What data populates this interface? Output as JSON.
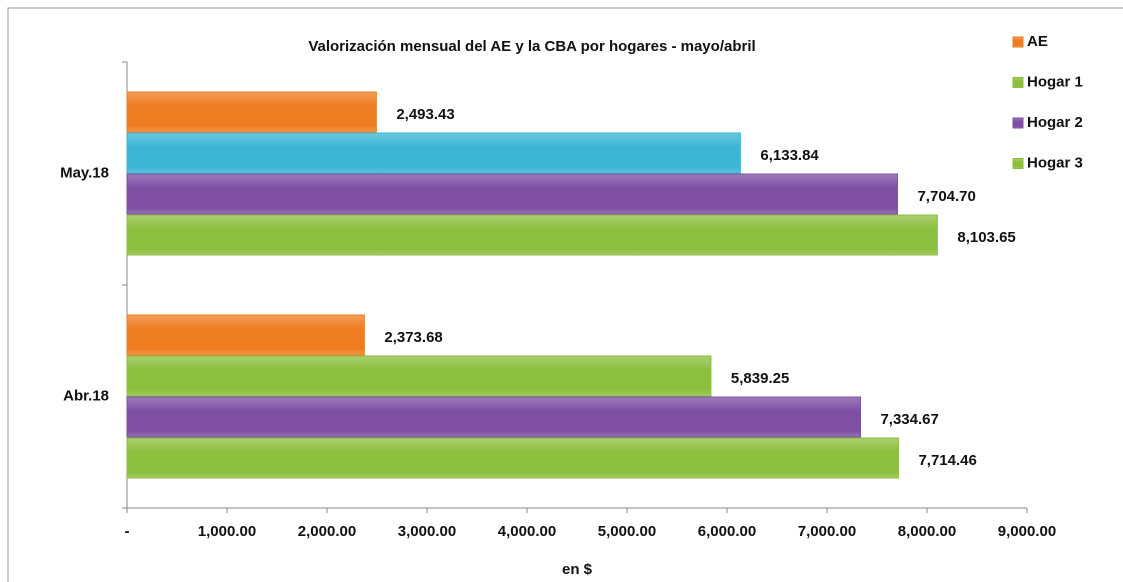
{
  "chart_data": {
    "type": "hbar",
    "title": "Valorización mensual del AE y la CBA por hogares - mayo/abril",
    "x_label": "en $",
    "categories": [
      "May.18",
      "Abr.18"
    ],
    "series": [
      {
        "name": "AE",
        "color": "#ee7d22",
        "values": [
          2493.43,
          2373.68
        ],
        "value_labels": [
          "2,493.43",
          "2,373.68"
        ]
      },
      {
        "name": "Hogar 1",
        "color": "#8dbf3f",
        "colors": [
          "#3bb5d3",
          "#8dbf3f"
        ],
        "values": [
          6133.84,
          5839.25
        ],
        "value_labels": [
          "6,133.84",
          "5,839.25"
        ]
      },
      {
        "name": "Hogar 2",
        "color": "#7e4fa3",
        "values": [
          7704.7,
          7334.67
        ],
        "value_labels": [
          "7,704.70",
          "7,334.67"
        ]
      },
      {
        "name": "Hogar 3",
        "color": "#8dbf3f",
        "values": [
          8103.65,
          7714.46
        ],
        "value_labels": [
          "8,103.65",
          "7,714.46"
        ]
      }
    ],
    "xlim": [
      0,
      9000
    ],
    "xticks": [
      {
        "value": 0,
        "label": "-"
      },
      {
        "value": 1000,
        "label": "1,000.00"
      },
      {
        "value": 2000,
        "label": "2,000.00"
      },
      {
        "value": 3000,
        "label": "3,000.00"
      },
      {
        "value": 4000,
        "label": "4,000.00"
      },
      {
        "value": 5000,
        "label": "5,000.00"
      },
      {
        "value": 6000,
        "label": "6,000.00"
      },
      {
        "value": 7000,
        "label": "7,000.00"
      },
      {
        "value": 8000,
        "label": "8,000.00"
      },
      {
        "value": 9000,
        "label": "9,000.00"
      }
    ],
    "legend": "top-right",
    "grid": false
  }
}
